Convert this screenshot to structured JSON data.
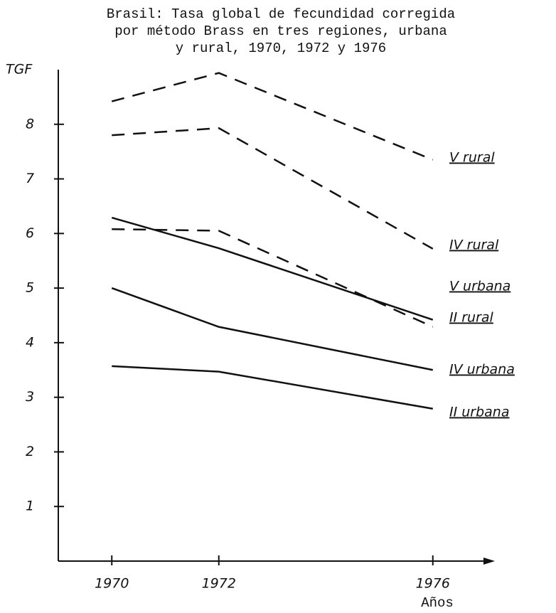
{
  "chart_data": {
    "type": "line",
    "title": [
      "Brasil: Tasa global de fecundidad corregida",
      "por método Brass en tres regiones, urbana",
      "y rural, 1970, 1972 y 1976"
    ],
    "ylabel": "TGF",
    "xlabel": "Años",
    "x": [
      1970,
      1972,
      1976
    ],
    "xlim": [
      1969,
      1977
    ],
    "xticks": [
      1970,
      1972,
      1976
    ],
    "ylim": [
      0,
      9
    ],
    "yticks": [
      1,
      2,
      3,
      4,
      5,
      6,
      7,
      8
    ],
    "series": [
      {
        "name": "V rural",
        "color": "#111111",
        "dashed": true,
        "values": [
          8.42,
          8.94,
          7.35
        ]
      },
      {
        "name": "IV rural",
        "color": "#111111",
        "dashed": true,
        "values": [
          7.8,
          7.93,
          5.72
        ]
      },
      {
        "name": "V urbana",
        "color": "#111111",
        "dashed": false,
        "values": [
          6.29,
          5.73,
          4.42
        ]
      },
      {
        "name": "II rural",
        "color": "#111111",
        "dashed": true,
        "values": [
          6.08,
          6.05,
          4.29
        ]
      },
      {
        "name": "IV urbana",
        "color": "#111111",
        "dashed": false,
        "values": [
          5.0,
          4.29,
          3.5
        ]
      },
      {
        "name": "II urbana",
        "color": "#111111",
        "dashed": false,
        "values": [
          3.57,
          3.47,
          2.79
        ]
      }
    ]
  }
}
